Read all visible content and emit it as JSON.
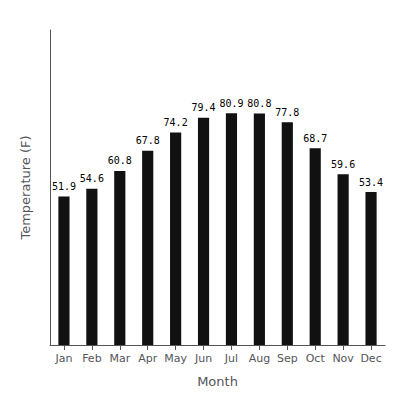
{
  "chart_data": {
    "type": "bar",
    "categories": [
      "Jan",
      "Feb",
      "Mar",
      "Apr",
      "May",
      "Jun",
      "Jul",
      "Aug",
      "Sep",
      "Oct",
      "Nov",
      "Dec"
    ],
    "values": [
      51.9,
      54.6,
      60.8,
      67.8,
      74.2,
      79.4,
      80.9,
      80.8,
      77.8,
      68.7,
      59.6,
      53.4
    ],
    "color": "#111111",
    "xlabel": "Month",
    "ylabel": "Temperature (F)",
    "ylim": [
      0,
      110
    ],
    "grid": false,
    "data_labels": true,
    "tick_labels": "x"
  }
}
